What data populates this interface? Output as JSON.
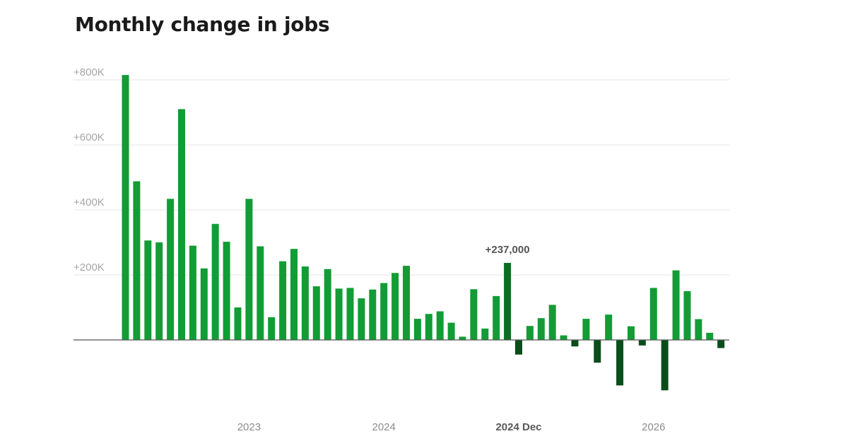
{
  "header": {
    "title": "Monthly change in jobs"
  },
  "colors": {
    "bar_positive": "#129c35",
    "bar_highlight": "#0b6e22",
    "bar_negative": "#0a4d1a",
    "grid": "#e4e4e4",
    "baseline": "#555555"
  },
  "chart_data": {
    "type": "bar",
    "title": "Monthly change in jobs",
    "xlabel": "",
    "ylabel": "",
    "ylim": [
      -200000,
      800000
    ],
    "grid": true,
    "y_ticks": [
      {
        "value": 800000,
        "label": "+800K"
      },
      {
        "value": 600000,
        "label": "+600K"
      },
      {
        "value": 400000,
        "label": "+400K"
      },
      {
        "value": 200000,
        "label": "+200K"
      }
    ],
    "x_ticks": [
      {
        "index": 11,
        "label": "2023",
        "highlight": false
      },
      {
        "index": 23,
        "label": "2024",
        "highlight": false
      },
      {
        "index": 35,
        "label": "2024 Dec",
        "highlight": true
      },
      {
        "index": 47,
        "label": "2026",
        "highlight": false
      }
    ],
    "values": [
      815000,
      488000,
      306000,
      300000,
      434000,
      710000,
      290000,
      220000,
      357000,
      302000,
      100000,
      434000,
      288000,
      70000,
      242000,
      280000,
      226000,
      165000,
      218000,
      158000,
      160000,
      128000,
      155000,
      175000,
      206000,
      228000,
      65000,
      80000,
      88000,
      53000,
      10000,
      156000,
      35000,
      135000,
      237000,
      -45000,
      43000,
      67000,
      108000,
      14000,
      -20000,
      65000,
      -70000,
      78000,
      -140000,
      42000,
      -17000,
      160000,
      -155000,
      214000,
      150000,
      64000,
      22000,
      -25000
    ],
    "highlight_index": 34,
    "annotation": {
      "index": 34,
      "text": "+237,000"
    }
  }
}
